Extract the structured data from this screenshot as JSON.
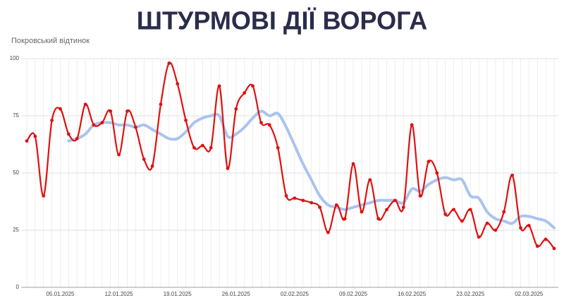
{
  "chart_data": {
    "type": "line",
    "title": "ШТУРМОВІ ДІЇ ВОРОГА",
    "subtitle": "Покровський відтинок",
    "categories": [
      null,
      null,
      null,
      null,
      "05.01.2025",
      null,
      null,
      null,
      null,
      null,
      null,
      "12.01.2025",
      null,
      null,
      null,
      null,
      null,
      null,
      "19.01.2025",
      null,
      null,
      null,
      null,
      null,
      null,
      "26.01.2025",
      null,
      null,
      null,
      null,
      null,
      null,
      "02.02.2025",
      null,
      null,
      null,
      null,
      null,
      null,
      "09.02.2025",
      null,
      null,
      null,
      null,
      null,
      null,
      "16.02.2025",
      null,
      null,
      null,
      null,
      null,
      null,
      "23.02.2025",
      null,
      null,
      null,
      null,
      null,
      null,
      "02.03.2025",
      null,
      null,
      null
    ],
    "series": [
      {
        "color": "#aac4ee",
        "values": [
          null,
          null,
          null,
          null,
          null,
          64,
          65,
          67,
          71,
          72,
          72,
          71,
          71,
          70,
          71,
          69,
          67,
          65,
          65,
          68,
          72,
          74,
          75,
          75,
          66,
          67,
          70,
          74,
          77,
          75,
          76,
          70,
          62,
          54,
          47,
          40,
          36,
          35,
          34,
          35,
          36,
          37,
          38,
          38,
          38,
          37,
          43,
          42,
          45,
          47,
          48,
          47,
          47,
          40,
          39,
          33,
          30,
          29,
          28,
          31,
          31,
          30,
          29,
          26
        ]
      },
      {
        "color": "#e01010",
        "values": [
          64,
          66,
          40,
          73,
          78,
          67,
          65,
          80,
          71,
          72,
          77,
          58,
          77,
          70,
          56,
          53,
          80,
          98,
          89,
          73,
          61,
          62,
          61,
          88,
          52,
          78,
          85,
          88,
          72,
          71,
          61,
          40,
          39,
          38,
          37,
          35,
          24,
          36,
          30,
          54,
          33,
          47,
          30,
          34,
          38,
          35,
          71,
          40,
          55,
          50,
          32,
          34,
          29,
          34,
          22,
          28,
          25,
          33,
          49,
          26,
          27,
          18,
          21,
          17
        ]
      }
    ],
    "ylim": [
      0,
      100
    ],
    "yticks": [
      0,
      25,
      50,
      75,
      100
    ],
    "grid": true
  }
}
